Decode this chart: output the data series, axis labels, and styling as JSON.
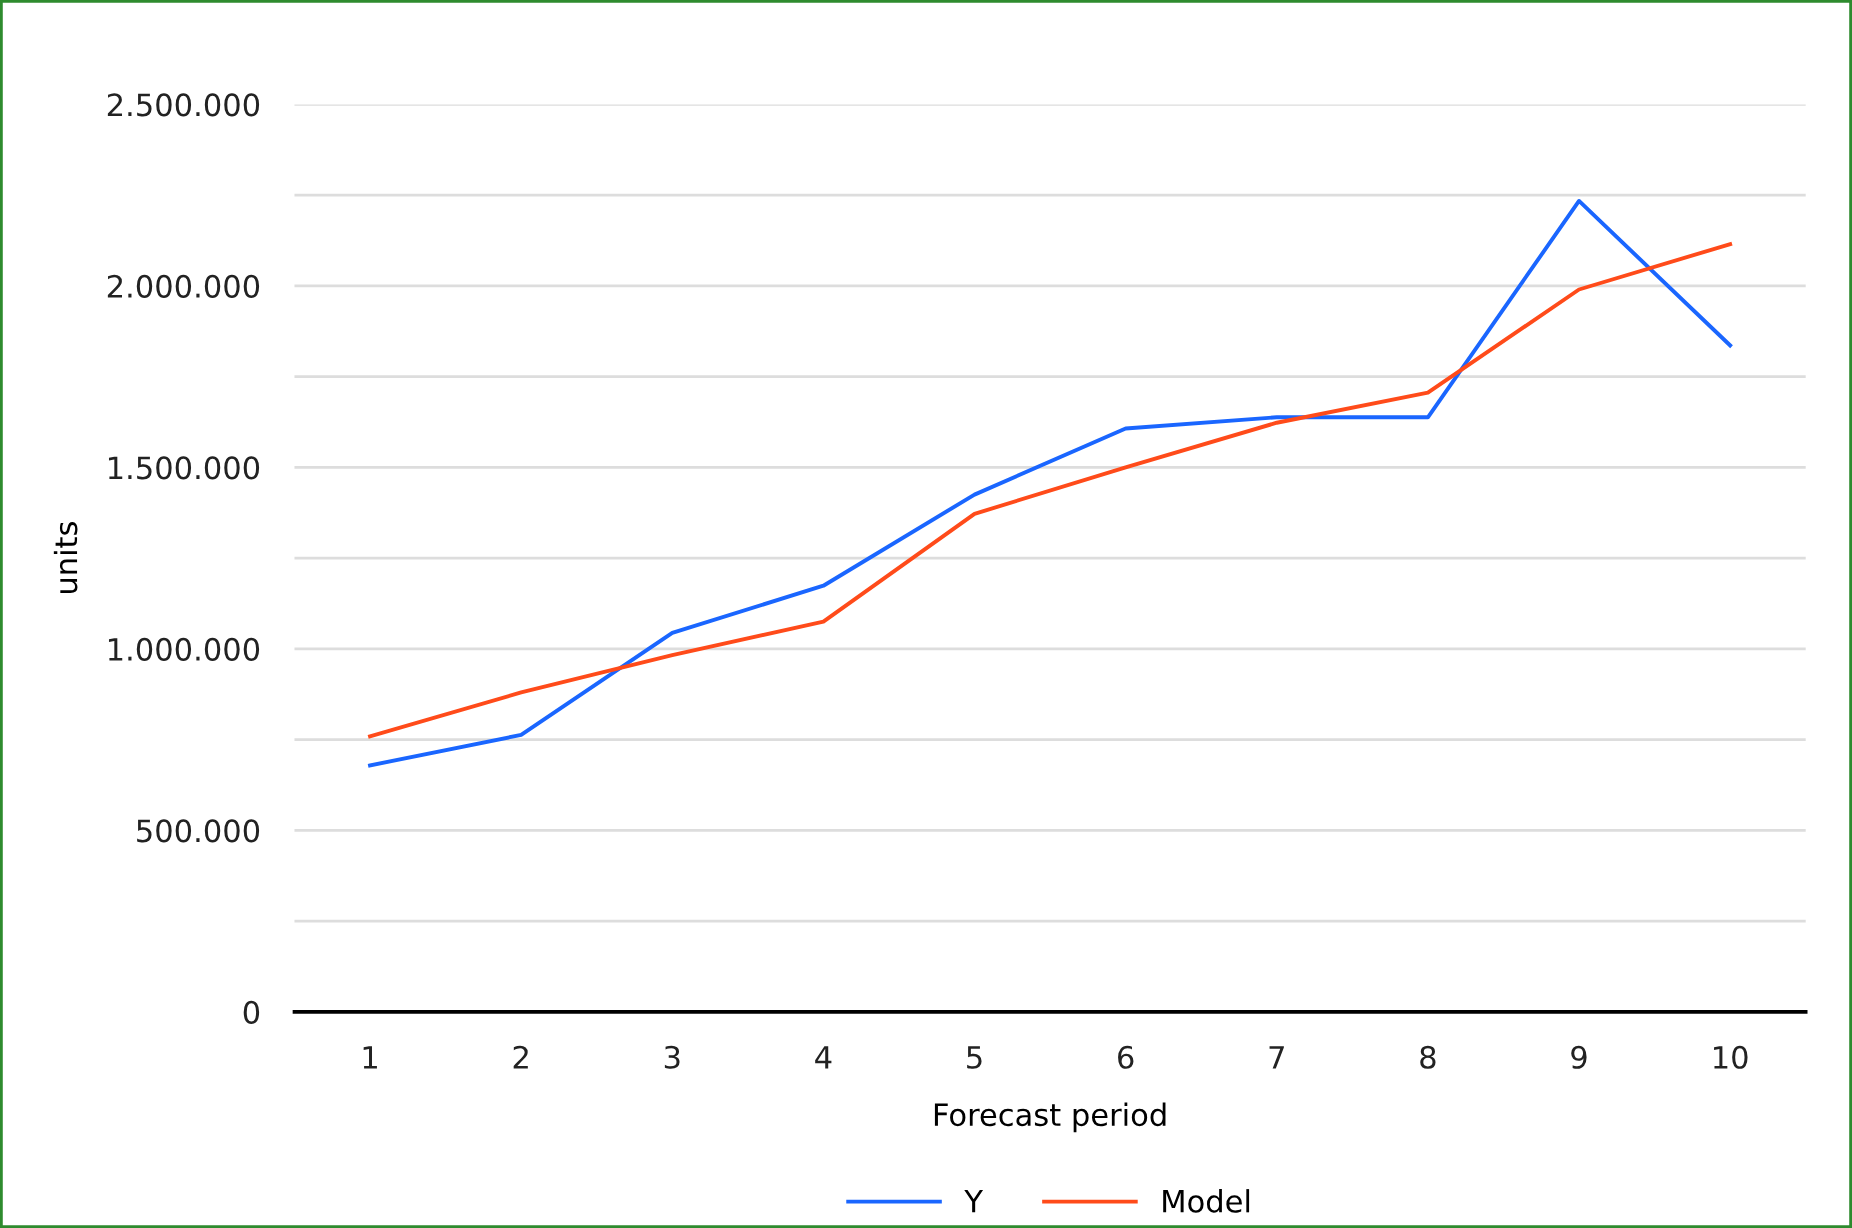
{
  "chart_data": {
    "type": "line",
    "xlabel": "Forecast period",
    "ylabel": "units",
    "categories": [
      "1",
      "2",
      "3",
      "4",
      "5",
      "6",
      "7",
      "8",
      "9",
      "10"
    ],
    "series": [
      {
        "name": "Y",
        "color": "#1a66ff",
        "values": [
          679000,
          763000,
          1044000,
          1174000,
          1425000,
          1607000,
          1638000,
          1638000,
          2234000,
          1836000
        ]
      },
      {
        "name": "Model",
        "color": "#ff4b1a",
        "values": [
          759000,
          880000,
          983000,
          1075000,
          1372000,
          1500000,
          1623000,
          1706000,
          1990000,
          2115000
        ]
      }
    ],
    "ylim": [
      0,
      2500000
    ],
    "yticks": [
      0,
      {
        "value": 250000,
        "label": null
      },
      {
        "value": 500000,
        "label": "500.000"
      },
      {
        "value": 750000,
        "label": null
      },
      {
        "value": 1000000,
        "label": "1.000.000"
      },
      {
        "value": 1250000,
        "label": null
      },
      {
        "value": 1500000,
        "label": "1.500.000"
      },
      {
        "value": 1750000,
        "label": null
      },
      {
        "value": 2000000,
        "label": "2.000.000"
      },
      {
        "value": 2250000,
        "label": null
      },
      {
        "value": 2500000,
        "label": "2.500.000"
      }
    ],
    "grid": "y",
    "legend": "bottom",
    "marker": "none",
    "line_style": "solid"
  }
}
